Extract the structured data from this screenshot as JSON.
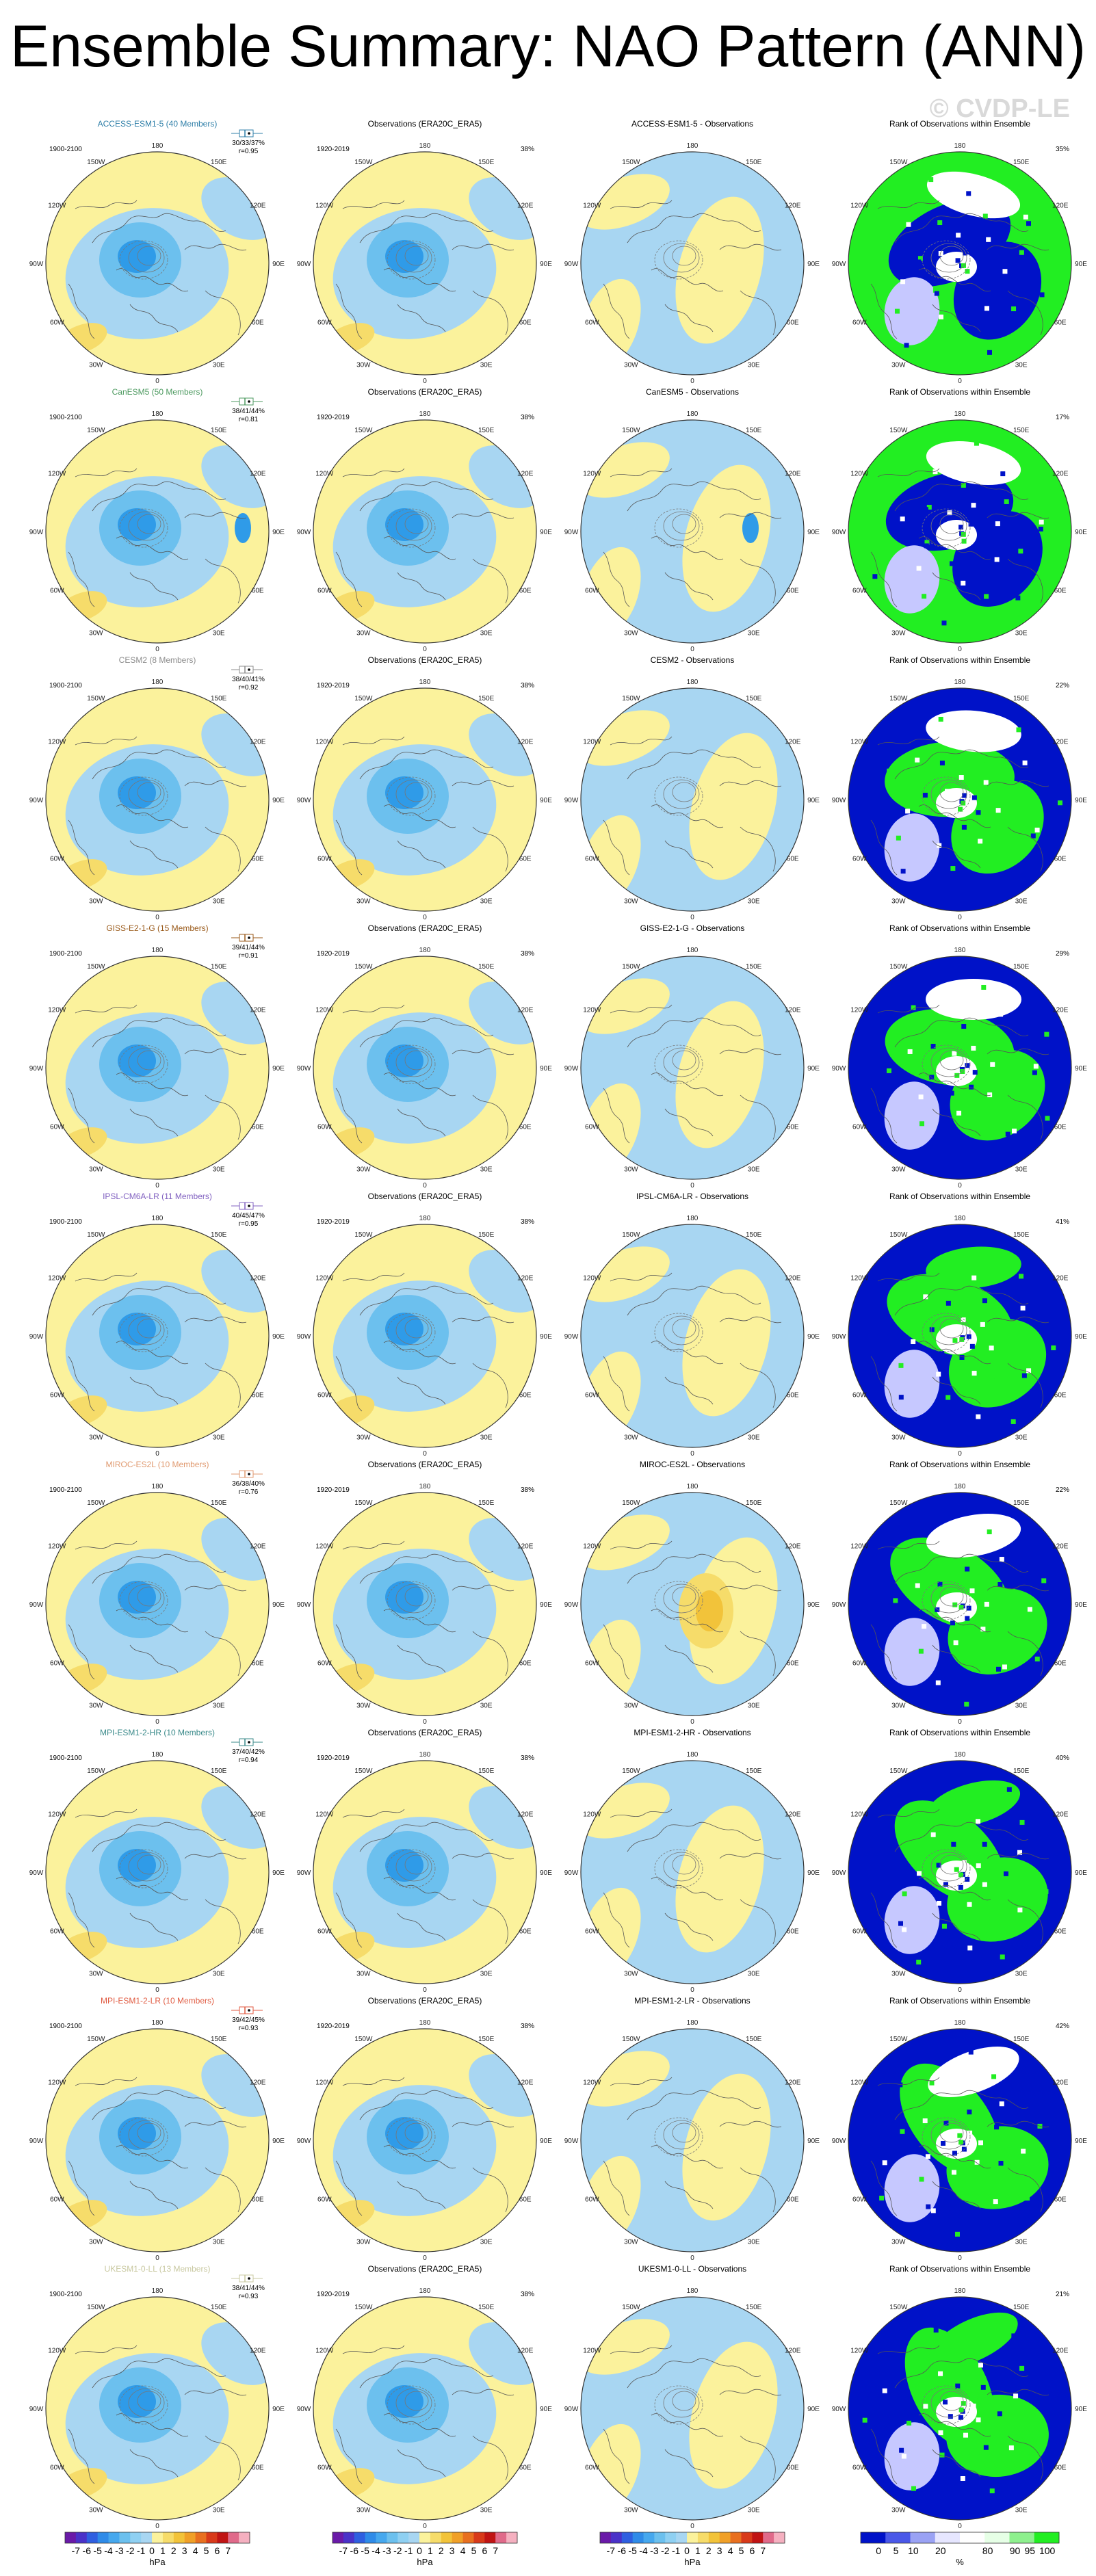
{
  "title": "Ensemble Summary: NAO Pattern (ANN)",
  "watermark": "© CVDP-LE",
  "column_titles": {
    "obs": "Observations (ERA20C_ERA5)",
    "obs_period": "1920-2019",
    "rank": "Rank of Observations within Ensemble"
  },
  "model_period": "1900-2100",
  "obs_percent": "38%",
  "longitude_labels": [
    "180",
    "150W",
    "150E",
    "120W",
    "120E",
    "90W",
    "90E",
    "60W",
    "60E",
    "30W",
    "30E",
    "0"
  ],
  "colors": {
    "yellow": "#fbf29c",
    "light_blue": "#a8d6f2",
    "mid_blue": "#6cc0ee",
    "dark_blue": "#2f9be8",
    "orange_light": "#f6dc6a",
    "orange": "#f2c33a",
    "rank_blue": "#0012c8",
    "rank_green": "#22ee22",
    "rank_light": "#c6c8ff"
  },
  "chart_data": {
    "type": "map-panels",
    "rows": [
      {
        "model": "ACCESS-ESM1-5 (40 Members)",
        "model_color": "#2f7fa8",
        "diff_title": "ACCESS-ESM1-5 - Observations",
        "stat1": "30/33/37%",
        "stat2": "r=0.95",
        "rank_pct": "35%",
        "rank_pattern": "green-dominant"
      },
      {
        "model": "CanESM5 (50 Members)",
        "model_color": "#4d9a60",
        "diff_title": "CanESM5 - Observations",
        "stat1": "38/41/44%",
        "stat2": "r=0.81",
        "rank_pct": "17%",
        "rank_pattern": "green-dominant"
      },
      {
        "model": "CESM2 (8 Members)",
        "model_color": "#8c8c8c",
        "diff_title": "CESM2 - Observations",
        "stat1": "38/40/41%",
        "stat2": "r=0.92",
        "rank_pct": "22%",
        "rank_pattern": "blue-dominant"
      },
      {
        "model": "GISS-E2-1-G (15 Members)",
        "model_color": "#9a5a1a",
        "diff_title": "GISS-E2-1-G - Observations",
        "stat1": "39/41/44%",
        "stat2": "r=0.91",
        "rank_pct": "29%",
        "rank_pattern": "blue-dominant"
      },
      {
        "model": "IPSL-CM6A-LR (11 Members)",
        "model_color": "#8060c0",
        "diff_title": "IPSL-CM6A-LR - Observations",
        "stat1": "40/45/47%",
        "stat2": "r=0.95",
        "rank_pct": "41%",
        "rank_pattern": "mixed"
      },
      {
        "model": "MIROC-ES2L (10 Members)",
        "model_color": "#e09a70",
        "diff_title": "MIROC-ES2L - Observations",
        "stat1": "36/38/40%",
        "stat2": "r=0.76",
        "rank_pct": "22%",
        "rank_pattern": "blue-dominant"
      },
      {
        "model": "MPI-ESM1-2-HR (10 Members)",
        "model_color": "#3a8a8a",
        "diff_title": "MPI-ESM1-2-HR - Observations",
        "stat1": "37/40/42%",
        "stat2": "r=0.94",
        "rank_pct": "40%",
        "rank_pattern": "mixed"
      },
      {
        "model": "MPI-ESM1-2-LR (10 Members)",
        "model_color": "#e05a40",
        "diff_title": "MPI-ESM1-2-LR - Observations",
        "stat1": "39/42/45%",
        "stat2": "r=0.93",
        "rank_pct": "42%",
        "rank_pattern": "blue-dominant"
      },
      {
        "model": "UKESM1-0-LL (13 Members)",
        "model_color": "#c8c8a0",
        "diff_title": "UKESM1-0-LL - Observations",
        "stat1": "38/41/44%",
        "stat2": "r=0.93",
        "rank_pct": "21%",
        "rank_pattern": "mixed"
      }
    ],
    "colorbar_hpa": {
      "labels": [
        "-7",
        "-6",
        "-5",
        "-4",
        "-3",
        "-2",
        "-1",
        "0",
        "1",
        "2",
        "3",
        "4",
        "5",
        "6",
        "7"
      ],
      "colors": [
        "#6a1aa8",
        "#4a32c8",
        "#2f5fe0",
        "#2f8be8",
        "#46a8ee",
        "#6cc0ee",
        "#8fd0f2",
        "#a8d6f2",
        "#fbf29c",
        "#f6dc6a",
        "#f2c33a",
        "#f0a028",
        "#e87020",
        "#d83a1a",
        "#c01414",
        "#e06a8a",
        "#f5b0c0"
      ],
      "unit": "hPa"
    },
    "colorbar_rank": {
      "labels": [
        "0",
        "5",
        "10",
        "20",
        "80",
        "90",
        "95",
        "100"
      ],
      "colors": [
        "#0012c8",
        "#4a58e8",
        "#9aa2f4",
        "#e6e6ff",
        "#ffffff",
        "#e6ffe6",
        "#8ef08e",
        "#22ee22"
      ],
      "unit": "%"
    }
  }
}
